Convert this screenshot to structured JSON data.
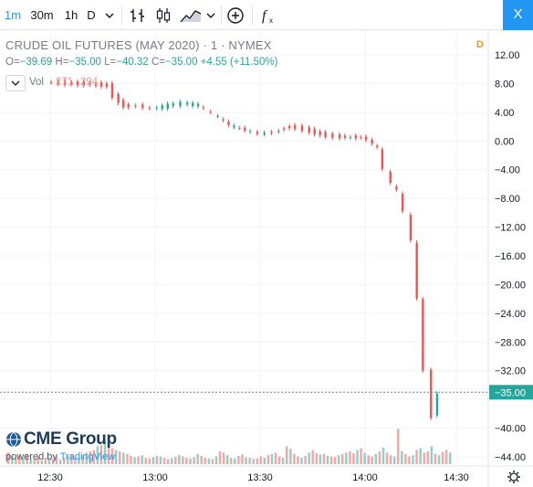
{
  "toolbar": {
    "intervals": [
      "1m",
      "30m",
      "1h",
      "D"
    ],
    "close_label": "X"
  },
  "legend": {
    "title": "CRUDE OIL FUTURES (MAY 2020) · 1 · NYMEX",
    "ohlc": [
      {
        "k": "O",
        "v": "−39.69"
      },
      {
        "k": "H",
        "v": "−35.00"
      },
      {
        "k": "L",
        "v": "−40.32"
      },
      {
        "k": "C",
        "v": "−35.00"
      }
    ],
    "change": "+4.55 (+11.50%)",
    "badge": "D",
    "volume_label": "Vol",
    "volume_value_1": "271",
    "volume_value_2": "294"
  },
  "branding": {
    "logo": "CME Group",
    "powered_prefix": "powered by",
    "powered_brand": "TradingView"
  },
  "colors": {
    "up": "#26a69a",
    "down": "#ef5350",
    "vol_up": "#8fd1c9",
    "vol_down": "#f4a8a6",
    "price_line": "#26a69a",
    "grid": "#f0f3fa",
    "axis_text": "#131722"
  },
  "chart_data": {
    "type": "candlestick",
    "y_ticks": [
      12,
      8,
      4,
      0,
      -4,
      -8,
      -12,
      -16,
      -20,
      -24,
      -28,
      -32,
      -36,
      -40,
      -44
    ],
    "y_tick_labels": [
      "12.00",
      "8.00",
      "4.00",
      "0.00",
      "−4.00",
      "−8.00",
      "−12.00",
      "−16.00",
      "−20.00",
      "−24.00",
      "−28.00",
      "−32.00",
      "−36.00",
      "−40.00",
      "−44.00"
    ],
    "ylim": [
      -46,
      14
    ],
    "x_ticks": [
      "12:30",
      "13:00",
      "13:30",
      "14:00",
      "14:30"
    ],
    "last_price": -35.0,
    "last_price_label": "−35.00",
    "price_points": [
      [
        12.5,
        8.2
      ],
      [
        12.6,
        8.0
      ],
      [
        12.72,
        7.9
      ],
      [
        12.8,
        7.7
      ],
      [
        12.83,
        6.2
      ],
      [
        12.88,
        4.8
      ],
      [
        12.95,
        4.9
      ],
      [
        13.02,
        4.5
      ],
      [
        13.1,
        5.0
      ],
      [
        13.17,
        5.3
      ],
      [
        13.25,
        5.0
      ],
      [
        13.32,
        3.8
      ],
      [
        13.4,
        2.2
      ],
      [
        13.48,
        1.5
      ],
      [
        13.55,
        1.0
      ],
      [
        13.62,
        1.2
      ],
      [
        13.7,
        2.0
      ],
      [
        13.77,
        1.6
      ],
      [
        13.85,
        0.9
      ],
      [
        13.92,
        0.6
      ],
      [
        14.0,
        0.5
      ],
      [
        14.05,
        0.5
      ],
      [
        14.08,
        0.2
      ],
      [
        14.13,
        -1.0
      ],
      [
        14.17,
        -4.0
      ],
      [
        14.2,
        -6.0
      ],
      [
        14.23,
        -7.0
      ],
      [
        14.27,
        -10.0
      ],
      [
        14.3,
        -14.0
      ],
      [
        14.33,
        -22.0
      ],
      [
        14.37,
        -32.0
      ],
      [
        14.4,
        -38.5
      ],
      [
        14.42,
        -35.0
      ]
    ],
    "volume_heights": [
      0.18,
      0.12,
      0.1,
      0.14,
      0.09,
      0.16,
      0.08,
      0.07,
      0.11,
      0.06,
      0.1,
      0.09,
      0.08,
      0.12,
      0.07,
      0.1,
      0.13,
      0.15,
      0.11,
      0.09,
      0.14,
      0.18,
      0.2,
      0.22,
      0.28,
      0.3,
      0.36,
      0.33,
      0.25,
      0.22,
      0.2,
      0.18,
      0.16,
      0.13,
      0.11,
      0.12,
      0.14,
      0.1,
      0.09,
      0.11,
      0.13,
      0.12,
      0.1,
      0.08,
      0.09,
      0.11,
      0.14,
      0.12,
      0.1,
      0.09,
      0.11,
      0.16,
      0.13,
      0.1,
      0.09,
      0.08,
      0.12,
      0.2,
      0.18,
      0.14,
      0.1,
      0.09,
      0.13,
      0.15,
      0.11,
      0.1,
      0.08,
      0.09,
      0.12,
      0.1,
      0.14,
      0.16,
      0.18,
      0.12,
      0.1,
      0.28,
      0.24,
      0.16,
      0.12,
      0.1,
      0.13,
      0.18,
      0.22,
      0.17,
      0.15,
      0.16,
      0.13,
      0.12,
      0.11,
      0.14,
      0.16,
      0.18,
      0.2,
      0.17,
      0.22,
      0.25,
      0.18,
      0.14,
      0.12,
      0.16,
      0.2,
      0.26,
      0.18,
      0.14,
      0.12,
      0.55,
      0.2,
      0.16,
      0.12,
      0.14,
      0.22,
      0.25,
      0.18,
      0.2,
      0.28,
      0.16,
      0.14,
      0.19,
      0.22,
      0.18
    ]
  }
}
